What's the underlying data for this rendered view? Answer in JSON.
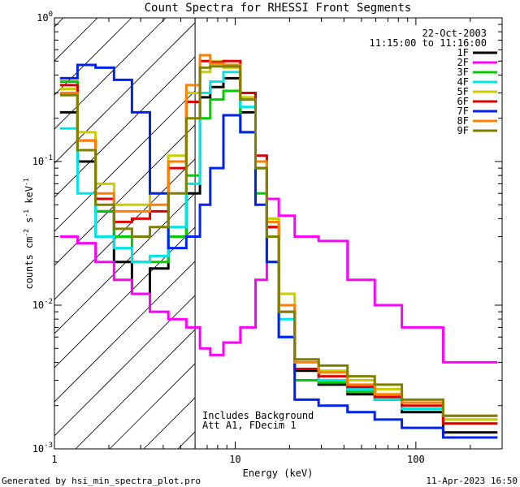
{
  "chart_data": {
    "type": "line",
    "title": "Count Spectra for RHESSI Front Segments",
    "xlabel": "Energy (keV)",
    "ylabel_parts": [
      "counts cm",
      "-2",
      " s",
      "-1",
      " keV",
      "-1"
    ],
    "xscale": "log",
    "yscale": "log",
    "xlim": [
      1,
      300
    ],
    "ylim": [
      0.001,
      1
    ],
    "x_tick_labels": [
      {
        "value": 1,
        "label": "1"
      },
      {
        "value": 10,
        "label": "10"
      },
      {
        "value": 100,
        "label": "100"
      }
    ],
    "y_tick_labels": [
      {
        "value": 1,
        "base": "10",
        "exp": "0"
      },
      {
        "value": 0.1,
        "base": "10",
        "exp": "-1"
      },
      {
        "value": 0.01,
        "base": "10",
        "exp": "-2"
      },
      {
        "value": 0.001,
        "base": "10",
        "exp": "-3"
      }
    ],
    "hatched_region": {
      "x_from": 1,
      "x_to": 6
    },
    "annotations": {
      "date": "22-Oct-2003",
      "time_range": "11:15:00 to 11:16:00",
      "note1": "Includes Background",
      "note2": "Att A1, FDecim 1"
    },
    "series": [
      {
        "name": "1F",
        "color": "#000000",
        "values": [
          0.22,
          0.1,
          0.045,
          0.02,
          0.012,
          0.018,
          0.03,
          0.06,
          0.28,
          0.33,
          0.38,
          0.22,
          0.09,
          0.035,
          0.01,
          0.0035,
          0.0028,
          0.0024,
          0.0022,
          0.0018,
          0.0013
        ]
      },
      {
        "name": "2F",
        "color": "#ff00ff",
        "values": [
          0.03,
          0.027,
          0.02,
          0.015,
          0.012,
          0.009,
          0.008,
          0.007,
          0.005,
          0.0045,
          0.0055,
          0.007,
          0.015,
          0.055,
          0.042,
          0.03,
          0.028,
          0.015,
          0.01,
          0.007,
          0.004
        ]
      },
      {
        "name": "3F",
        "color": "#00cc00",
        "values": [
          0.36,
          0.12,
          0.045,
          0.03,
          0.02,
          0.02,
          0.03,
          0.08,
          0.2,
          0.27,
          0.31,
          0.16,
          0.06,
          0.02,
          0.006,
          0.003,
          0.0029,
          0.0025,
          0.0022,
          0.0019,
          0.0016
        ]
      },
      {
        "name": "4F",
        "color": "#00e6e6",
        "values": [
          0.17,
          0.06,
          0.03,
          0.025,
          0.02,
          0.022,
          0.035,
          0.07,
          0.3,
          0.36,
          0.42,
          0.24,
          0.1,
          0.04,
          0.008,
          0.0036,
          0.003,
          0.0026,
          0.0022,
          0.0019,
          0.0015
        ]
      },
      {
        "name": "5F",
        "color": "#cccc00",
        "values": [
          0.32,
          0.16,
          0.07,
          0.05,
          0.05,
          0.06,
          0.11,
          0.3,
          0.42,
          0.5,
          0.45,
          0.28,
          0.1,
          0.04,
          0.012,
          0.0042,
          0.0035,
          0.003,
          0.0026,
          0.0021,
          0.0016
        ]
      },
      {
        "name": "6F",
        "color": "#dd0000",
        "values": [
          0.34,
          0.14,
          0.055,
          0.038,
          0.04,
          0.045,
          0.09,
          0.26,
          0.5,
          0.49,
          0.5,
          0.3,
          0.11,
          0.035,
          0.009,
          0.0036,
          0.0032,
          0.0027,
          0.0023,
          0.002,
          0.0015
        ]
      },
      {
        "name": "7F",
        "color": "#0022ee",
        "values": [
          0.38,
          0.47,
          0.45,
          0.37,
          0.22,
          0.06,
          0.025,
          0.03,
          0.05,
          0.09,
          0.21,
          0.16,
          0.05,
          0.02,
          0.006,
          0.0022,
          0.002,
          0.0018,
          0.0016,
          0.0014,
          0.0012
        ]
      },
      {
        "name": "8F",
        "color": "#ff8000",
        "values": [
          0.3,
          0.14,
          0.06,
          0.045,
          0.045,
          0.05,
          0.1,
          0.34,
          0.55,
          0.48,
          0.47,
          0.27,
          0.1,
          0.038,
          0.01,
          0.004,
          0.0034,
          0.0028,
          0.0024,
          0.0021,
          0.0017
        ]
      },
      {
        "name": "9F",
        "color": "#808000",
        "values": [
          0.29,
          0.12,
          0.05,
          0.034,
          0.03,
          0.035,
          0.06,
          0.2,
          0.45,
          0.46,
          0.46,
          0.27,
          0.09,
          0.03,
          0.009,
          0.0042,
          0.0038,
          0.0032,
          0.0028,
          0.0022,
          0.0017
        ]
      }
    ],
    "x": [
      1.2,
      1.5,
      1.9,
      2.4,
      3.0,
      3.8,
      4.8,
      6.0,
      6.8,
      7.8,
      9.5,
      12,
      14,
      16,
      19,
      24,
      35,
      50,
      70,
      100,
      200
    ]
  },
  "footer": {
    "left": "Generated by hsi_min_spectra_plot.pro",
    "right": "11-Apr-2023 16:50"
  }
}
